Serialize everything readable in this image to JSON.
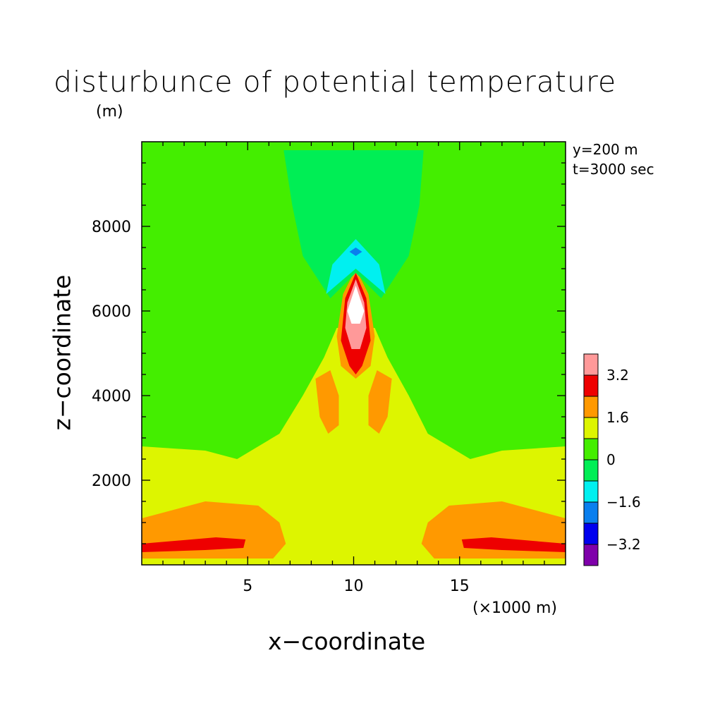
{
  "chart_data": {
    "type": "heatmap",
    "title": "disturbunce of potential temperature",
    "ylabel": "z−coordinate",
    "yunit": "(m)",
    "xlabel": "x−coordinate",
    "xunit": "(×1000 m)",
    "annotations": [
      "y=200 m",
      "t=3000 sec"
    ],
    "xlim": [
      0,
      20
    ],
    "ylim": [
      0,
      10000
    ],
    "x_ticks": [
      5,
      10,
      15
    ],
    "y_ticks": [
      2000,
      4000,
      6000,
      8000
    ],
    "colorbar": {
      "levels": [
        -4.0,
        -3.2,
        -2.4,
        -1.6,
        -0.8,
        0,
        0.8,
        1.6,
        2.4,
        3.2,
        4.0
      ],
      "labels": [
        "3.2",
        "1.6",
        "0",
        "−1.6",
        "−3.2"
      ],
      "colors": [
        "#7f00aa",
        "#0000ee",
        "#0a7fee",
        "#00f0f0",
        "#00ee55",
        "#44ee00",
        "#ddf500",
        "#ff9900",
        "#ee0000",
        "#ff9999",
        "#ffffff"
      ]
    },
    "regions": [
      {
        "level": 1,
        "polygon": [
          [
            0,
            2800
          ],
          [
            3,
            2700
          ],
          [
            4.5,
            2500
          ],
          [
            6.5,
            3100
          ],
          [
            7.6,
            4000
          ],
          [
            8.6,
            4900
          ],
          [
            9.2,
            5600
          ],
          [
            11,
            5600
          ],
          [
            11.6,
            4900
          ],
          [
            12.6,
            4000
          ],
          [
            13.5,
            3100
          ],
          [
            15.5,
            2500
          ],
          [
            17,
            2700
          ],
          [
            20,
            2800
          ],
          [
            20,
            0
          ],
          [
            0,
            0
          ]
        ]
      },
      {
        "level": 2,
        "polygon": [
          [
            0,
            1100
          ],
          [
            3,
            1500
          ],
          [
            5.5,
            1400
          ],
          [
            6.5,
            1000
          ],
          [
            6.8,
            500
          ],
          [
            6.2,
            150
          ],
          [
            0,
            150
          ]
        ]
      },
      {
        "level": 2,
        "polygon": [
          [
            20,
            1100
          ],
          [
            17,
            1500
          ],
          [
            14.5,
            1400
          ],
          [
            13.5,
            1000
          ],
          [
            13.2,
            500
          ],
          [
            13.8,
            150
          ],
          [
            20,
            150
          ]
        ]
      },
      {
        "level": 3,
        "polygon": [
          [
            0,
            500
          ],
          [
            3.5,
            650
          ],
          [
            4.9,
            600
          ],
          [
            4.8,
            400
          ],
          [
            3,
            350
          ],
          [
            0,
            300
          ]
        ]
      },
      {
        "level": 3,
        "polygon": [
          [
            20,
            500
          ],
          [
            16.5,
            650
          ],
          [
            15.1,
            600
          ],
          [
            15.2,
            400
          ],
          [
            17,
            350
          ],
          [
            20,
            300
          ]
        ]
      },
      {
        "level": 2,
        "polygon": [
          [
            8.2,
            4400
          ],
          [
            8.9,
            4600
          ],
          [
            9.3,
            4000
          ],
          [
            9.3,
            3300
          ],
          [
            8.8,
            3100
          ],
          [
            8.4,
            3500
          ]
        ]
      },
      {
        "level": 2,
        "polygon": [
          [
            11.8,
            4400
          ],
          [
            11.1,
            4600
          ],
          [
            10.7,
            4000
          ],
          [
            10.7,
            3300
          ],
          [
            11.2,
            3100
          ],
          [
            11.6,
            3500
          ]
        ]
      },
      {
        "level": 2,
        "polygon": [
          [
            10.1,
            7000
          ],
          [
            10.7,
            6400
          ],
          [
            11,
            5400
          ],
          [
            10.8,
            4700
          ],
          [
            10.1,
            4400
          ],
          [
            9.4,
            4700
          ],
          [
            9.2,
            5400
          ],
          [
            9.5,
            6400
          ]
        ]
      },
      {
        "level": 3,
        "polygon": [
          [
            10.1,
            6900
          ],
          [
            10.6,
            6300
          ],
          [
            10.8,
            5300
          ],
          [
            10.4,
            4700
          ],
          [
            10.1,
            4500
          ],
          [
            9.8,
            4700
          ],
          [
            9.4,
            5300
          ],
          [
            9.6,
            6300
          ]
        ]
      },
      {
        "level": 4,
        "polygon": [
          [
            10.1,
            6750
          ],
          [
            10.5,
            6200
          ],
          [
            10.6,
            5600
          ],
          [
            10.3,
            5100
          ],
          [
            9.9,
            5100
          ],
          [
            9.6,
            5600
          ],
          [
            9.7,
            6200
          ]
        ]
      },
      {
        "level": 5,
        "polygon": [
          [
            10.1,
            6600
          ],
          [
            10.5,
            6000
          ],
          [
            10.3,
            5700
          ],
          [
            9.9,
            5700
          ],
          [
            9.7,
            6000
          ]
        ]
      },
      {
        "level": -1,
        "polygon": [
          [
            6.7,
            9800
          ],
          [
            13.3,
            9800
          ],
          [
            13.1,
            8500
          ],
          [
            12.6,
            7300
          ],
          [
            11.3,
            6300
          ],
          [
            10.1,
            6900
          ],
          [
            8.9,
            6300
          ],
          [
            7.6,
            7300
          ],
          [
            7.1,
            8500
          ]
        ]
      },
      {
        "level": -2,
        "polygon": [
          [
            10.1,
            7700
          ],
          [
            11.2,
            7100
          ],
          [
            11.5,
            6400
          ],
          [
            10.1,
            7000
          ],
          [
            8.7,
            6400
          ],
          [
            9,
            7100
          ]
        ]
      },
      {
        "level": -3,
        "polygon": [
          [
            10.1,
            7500
          ],
          [
            10.4,
            7400
          ],
          [
            10.1,
            7300
          ],
          [
            9.8,
            7400
          ]
        ]
      }
    ]
  }
}
